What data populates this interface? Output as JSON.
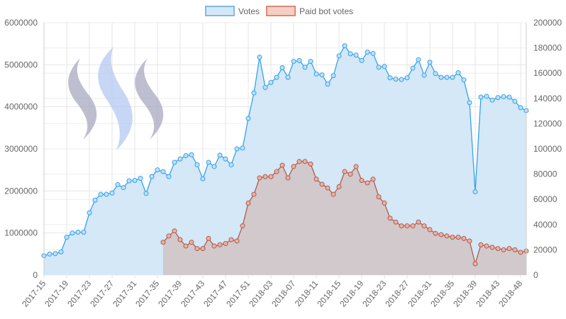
{
  "chart_data": {
    "type": "area",
    "title": "",
    "xlabel": "",
    "ylabel": "",
    "grid": true,
    "legend_position": "top",
    "x_tick_labels": [
      "2017-15",
      "2017-19",
      "2017-23",
      "2017-27",
      "2017-31",
      "2017-35",
      "2017-39",
      "2017-43",
      "2017-47",
      "2017-51",
      "2018-03",
      "2018-07",
      "2018-11",
      "2018-15",
      "2018-19",
      "2018-23",
      "2018-27",
      "2018-31",
      "2018-35",
      "2018-39",
      "2018-43",
      "2018-48"
    ],
    "x_tick_indices": [
      0,
      4,
      8,
      12,
      16,
      20,
      24,
      28,
      32,
      36,
      40,
      44,
      48,
      52,
      56,
      60,
      64,
      68,
      72,
      76,
      80,
      84
    ],
    "y_left": {
      "min": 0,
      "max": 6000000,
      "ticks": [
        "0",
        "1000000",
        "2000000",
        "3000000",
        "4000000",
        "5000000",
        "6000000"
      ]
    },
    "y_right": {
      "min": 0,
      "max": 200000,
      "ticks": [
        "0",
        "20000",
        "40000",
        "60000",
        "80000",
        "100000",
        "120000",
        "140000",
        "160000",
        "180000",
        "200000"
      ]
    },
    "series": [
      {
        "name": "Votes",
        "axis": "left",
        "color": "#36a2eb",
        "fill": "#d4e8f7",
        "start_index": 0,
        "values": [
          460000,
          500000,
          510000,
          550000,
          900000,
          1000000,
          1020000,
          1020000,
          1480000,
          1780000,
          1920000,
          1920000,
          1950000,
          2150000,
          2080000,
          2240000,
          2250000,
          2300000,
          1940000,
          2340000,
          2500000,
          2460000,
          2340000,
          2680000,
          2760000,
          2840000,
          2860000,
          2620000,
          2290000,
          2680000,
          2580000,
          2850000,
          2760000,
          2620000,
          3000000,
          3020000,
          3720000,
          4330000,
          5180000,
          4460000,
          4580000,
          4700000,
          4930000,
          4700000,
          5080000,
          5100000,
          4940000,
          5080000,
          4780000,
          4760000,
          4540000,
          4740000,
          5210000,
          5450000,
          5260000,
          5230000,
          5100000,
          5300000,
          5270000,
          4940000,
          4960000,
          4690000,
          4660000,
          4650000,
          4690000,
          4920000,
          5120000,
          4750000,
          5060000,
          4790000,
          4700000,
          4700000,
          4700000,
          4810000,
          4640000,
          4100000,
          1980000,
          4230000,
          4250000,
          4160000,
          4220000,
          4240000,
          4230000,
          4130000,
          3980000,
          3910000
        ]
      },
      {
        "name": "Paid bot votes",
        "axis": "right",
        "color": "#b55a48",
        "fill": "rgba(205,175,170,0.55)",
        "start_index": 21,
        "values": [
          26000,
          31000,
          35000,
          28000,
          23000,
          26000,
          21000,
          21000,
          29000,
          23000,
          24000,
          25000,
          28000,
          27000,
          39000,
          57000,
          64000,
          77000,
          78000,
          78000,
          82000,
          87000,
          77000,
          86000,
          90000,
          90000,
          88000,
          76000,
          72000,
          69000,
          64000,
          70000,
          82000,
          80000,
          86000,
          75000,
          73000,
          76000,
          62000,
          57000,
          45000,
          42000,
          39000,
          39000,
          39000,
          42000,
          39000,
          36000,
          33000,
          32000,
          31000,
          30000,
          30000,
          29000,
          27000,
          9000,
          24000,
          23000,
          22000,
          21000,
          20000,
          21000,
          20000,
          18000,
          19000
        ]
      }
    ]
  }
}
